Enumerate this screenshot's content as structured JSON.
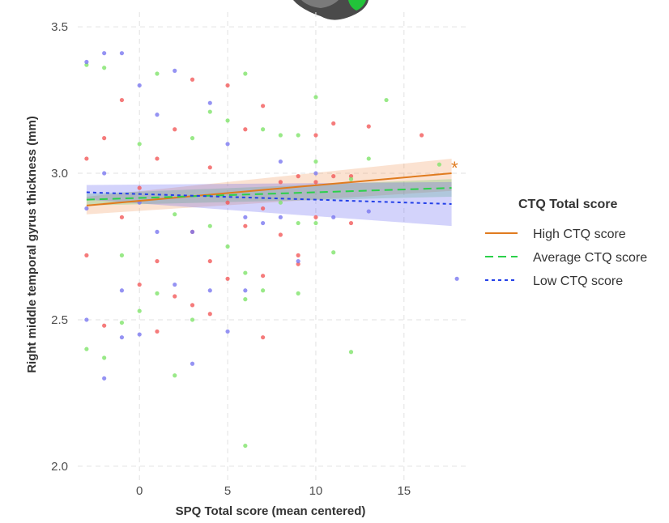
{
  "chart_data": {
    "type": "scatter",
    "title": "",
    "xlabel": "SPQ Total score (mean centered)",
    "ylabel": "Right middle temporal gyrus thickness (mm)",
    "xlim": [
      -3.5,
      18.5
    ],
    "ylim": [
      1.95,
      3.55
    ],
    "x_ticks": [
      0,
      5,
      10,
      15
    ],
    "y_ticks": [
      2.0,
      2.5,
      3.0,
      3.5
    ],
    "x_tick_labels": [
      "0",
      "5",
      "10",
      "15"
    ],
    "y_tick_labels": [
      "2.0",
      "2.5",
      "3.0",
      "3.5"
    ],
    "grid": true,
    "legend_placement": "right",
    "legend_title": "CTQ Total score",
    "significance_marker": "*",
    "series": [
      {
        "name": "High CTQ score",
        "color": "#e07b1f",
        "point_color": "#f35a5a",
        "line_style": "solid",
        "fit": {
          "x": [
            -3,
            17.7
          ],
          "y": [
            2.89,
            3.0
          ]
        },
        "ci_lower": [
          2.86,
          2.94
        ],
        "ci_upper": [
          2.92,
          3.05
        ],
        "points": [
          [
            -3,
            3.05
          ],
          [
            -3,
            2.72
          ],
          [
            -2,
            3.12
          ],
          [
            -2,
            2.48
          ],
          [
            -1,
            2.85
          ],
          [
            -1,
            3.25
          ],
          [
            0,
            2.95
          ],
          [
            0,
            2.62
          ],
          [
            1,
            2.46
          ],
          [
            1,
            3.05
          ],
          [
            1,
            2.7
          ],
          [
            2,
            2.58
          ],
          [
            2,
            3.15
          ],
          [
            3,
            2.8
          ],
          [
            3,
            3.32
          ],
          [
            3,
            2.55
          ],
          [
            4,
            2.52
          ],
          [
            4,
            3.02
          ],
          [
            4,
            2.7
          ],
          [
            5,
            3.3
          ],
          [
            5,
            2.9
          ],
          [
            5,
            2.64
          ],
          [
            6,
            2.82
          ],
          [
            6,
            3.15
          ],
          [
            7,
            3.23
          ],
          [
            7,
            2.65
          ],
          [
            7,
            2.44
          ],
          [
            7,
            2.88
          ],
          [
            8,
            2.97
          ],
          [
            8,
            2.79
          ],
          [
            9,
            2.99
          ],
          [
            9,
            2.72
          ],
          [
            9,
            2.69
          ],
          [
            10,
            3.13
          ],
          [
            10,
            2.97
          ],
          [
            10,
            2.85
          ],
          [
            11,
            3.17
          ],
          [
            11,
            2.99
          ],
          [
            12,
            2.83
          ],
          [
            12,
            2.99
          ],
          [
            13,
            3.16
          ],
          [
            16,
            3.13
          ]
        ]
      },
      {
        "name": "Average CTQ score",
        "color": "#2bd04a",
        "point_color": "#7fe36a",
        "line_style": "dashed",
        "fit": {
          "x": [
            -3,
            17.7
          ],
          "y": [
            2.91,
            2.95
          ]
        },
        "ci_lower": [
          2.89,
          2.92
        ],
        "ci_upper": [
          2.93,
          2.98
        ],
        "points": [
          [
            -3,
            2.4
          ],
          [
            -3,
            3.37
          ],
          [
            -2,
            2.37
          ],
          [
            -2,
            3.36
          ],
          [
            -1,
            2.49
          ],
          [
            -1,
            2.72
          ],
          [
            0,
            3.1
          ],
          [
            0,
            2.53
          ],
          [
            1,
            3.34
          ],
          [
            1,
            2.59
          ],
          [
            2,
            2.31
          ],
          [
            2,
            2.86
          ],
          [
            3,
            2.5
          ],
          [
            3,
            3.12
          ],
          [
            4,
            3.21
          ],
          [
            4,
            2.82
          ],
          [
            5,
            3.18
          ],
          [
            5,
            2.75
          ],
          [
            6,
            3.34
          ],
          [
            6,
            2.66
          ],
          [
            6,
            2.57
          ],
          [
            6,
            2.07
          ],
          [
            7,
            3.15
          ],
          [
            7,
            2.6
          ],
          [
            8,
            3.13
          ],
          [
            8,
            2.9
          ],
          [
            9,
            3.13
          ],
          [
            9,
            2.83
          ],
          [
            9,
            2.59
          ],
          [
            10,
            3.26
          ],
          [
            10,
            3.04
          ],
          [
            10,
            2.83
          ],
          [
            11,
            2.73
          ],
          [
            12,
            2.39
          ],
          [
            12,
            2.98
          ],
          [
            13,
            3.05
          ],
          [
            14,
            3.25
          ],
          [
            17,
            3.03
          ]
        ]
      },
      {
        "name": "Low CTQ score",
        "color": "#2340e8",
        "point_color": "#7a78f0",
        "line_style": "dotted",
        "fit": {
          "x": [
            -3,
            17.7
          ],
          "y": [
            2.935,
            2.895
          ]
        },
        "ci_lower": [
          2.91,
          2.82
        ],
        "ci_upper": [
          2.96,
          2.97
        ],
        "points": [
          [
            -3,
            3.38
          ],
          [
            -3,
            2.5
          ],
          [
            -3,
            2.88
          ],
          [
            -2,
            3.41
          ],
          [
            -2,
            2.3
          ],
          [
            -2,
            3.0
          ],
          [
            -1,
            3.41
          ],
          [
            -1,
            2.44
          ],
          [
            -1,
            2.6
          ],
          [
            0,
            3.3
          ],
          [
            0,
            2.45
          ],
          [
            0,
            2.9
          ],
          [
            1,
            3.2
          ],
          [
            1,
            2.8
          ],
          [
            2,
            3.35
          ],
          [
            2,
            2.62
          ],
          [
            3,
            2.35
          ],
          [
            3,
            2.8
          ],
          [
            4,
            3.24
          ],
          [
            4,
            2.6
          ],
          [
            5,
            3.1
          ],
          [
            5,
            2.46
          ],
          [
            6,
            2.85
          ],
          [
            6,
            2.6
          ],
          [
            7,
            2.83
          ],
          [
            8,
            3.04
          ],
          [
            8,
            2.85
          ],
          [
            9,
            2.7
          ],
          [
            10,
            3.0
          ],
          [
            11,
            2.85
          ],
          [
            13,
            2.87
          ],
          [
            18,
            2.64
          ]
        ]
      }
    ]
  }
}
